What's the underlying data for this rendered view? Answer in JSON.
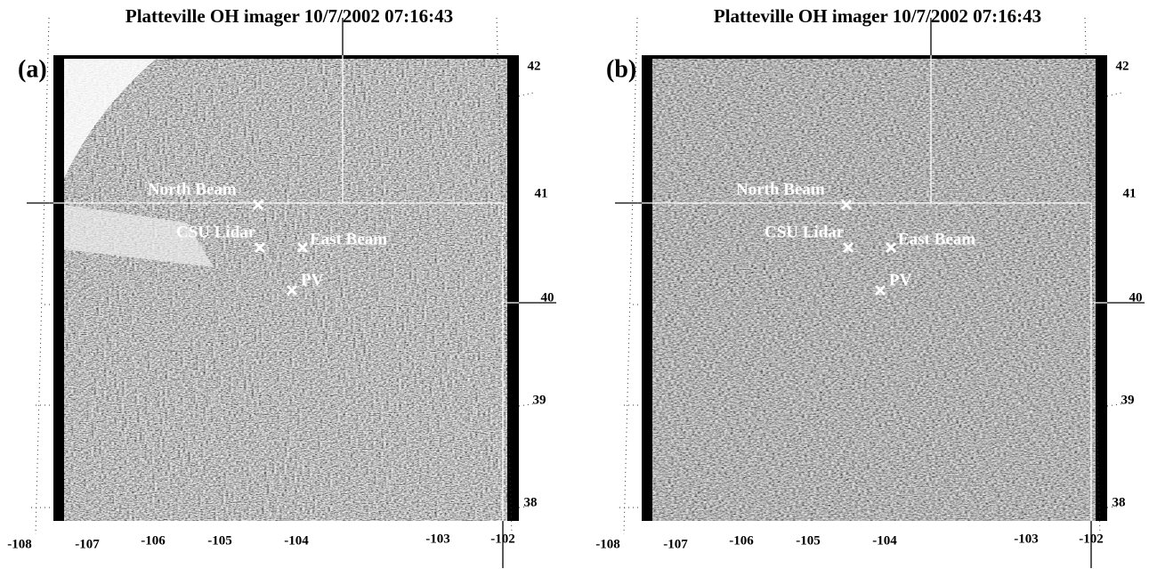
{
  "panels": [
    {
      "title": "Platteville OH imager 10/7/2002 07:16:43",
      "label": "(a)",
      "markers": [
        {
          "label": "North Beam"
        },
        {
          "label": "CSU Lidar"
        },
        {
          "label": "East Beam"
        },
        {
          "label": "PV"
        }
      ],
      "xticks": [
        -108,
        -107,
        -106,
        -105,
        -104,
        -103,
        -102
      ],
      "yticks": [
        42,
        41,
        40,
        39,
        38
      ]
    },
    {
      "title": "Platteville OH imager 10/7/2002 07:16:43",
      "label": "(b)",
      "markers": [
        {
          "label": "North Beam"
        },
        {
          "label": "CSU Lidar"
        },
        {
          "label": "East Beam"
        },
        {
          "label": "PV"
        }
      ],
      "xticks": [
        -108,
        -107,
        -106,
        -105,
        -104,
        -103,
        -102
      ],
      "yticks": [
        42,
        41,
        40,
        39,
        38
      ]
    }
  ]
}
